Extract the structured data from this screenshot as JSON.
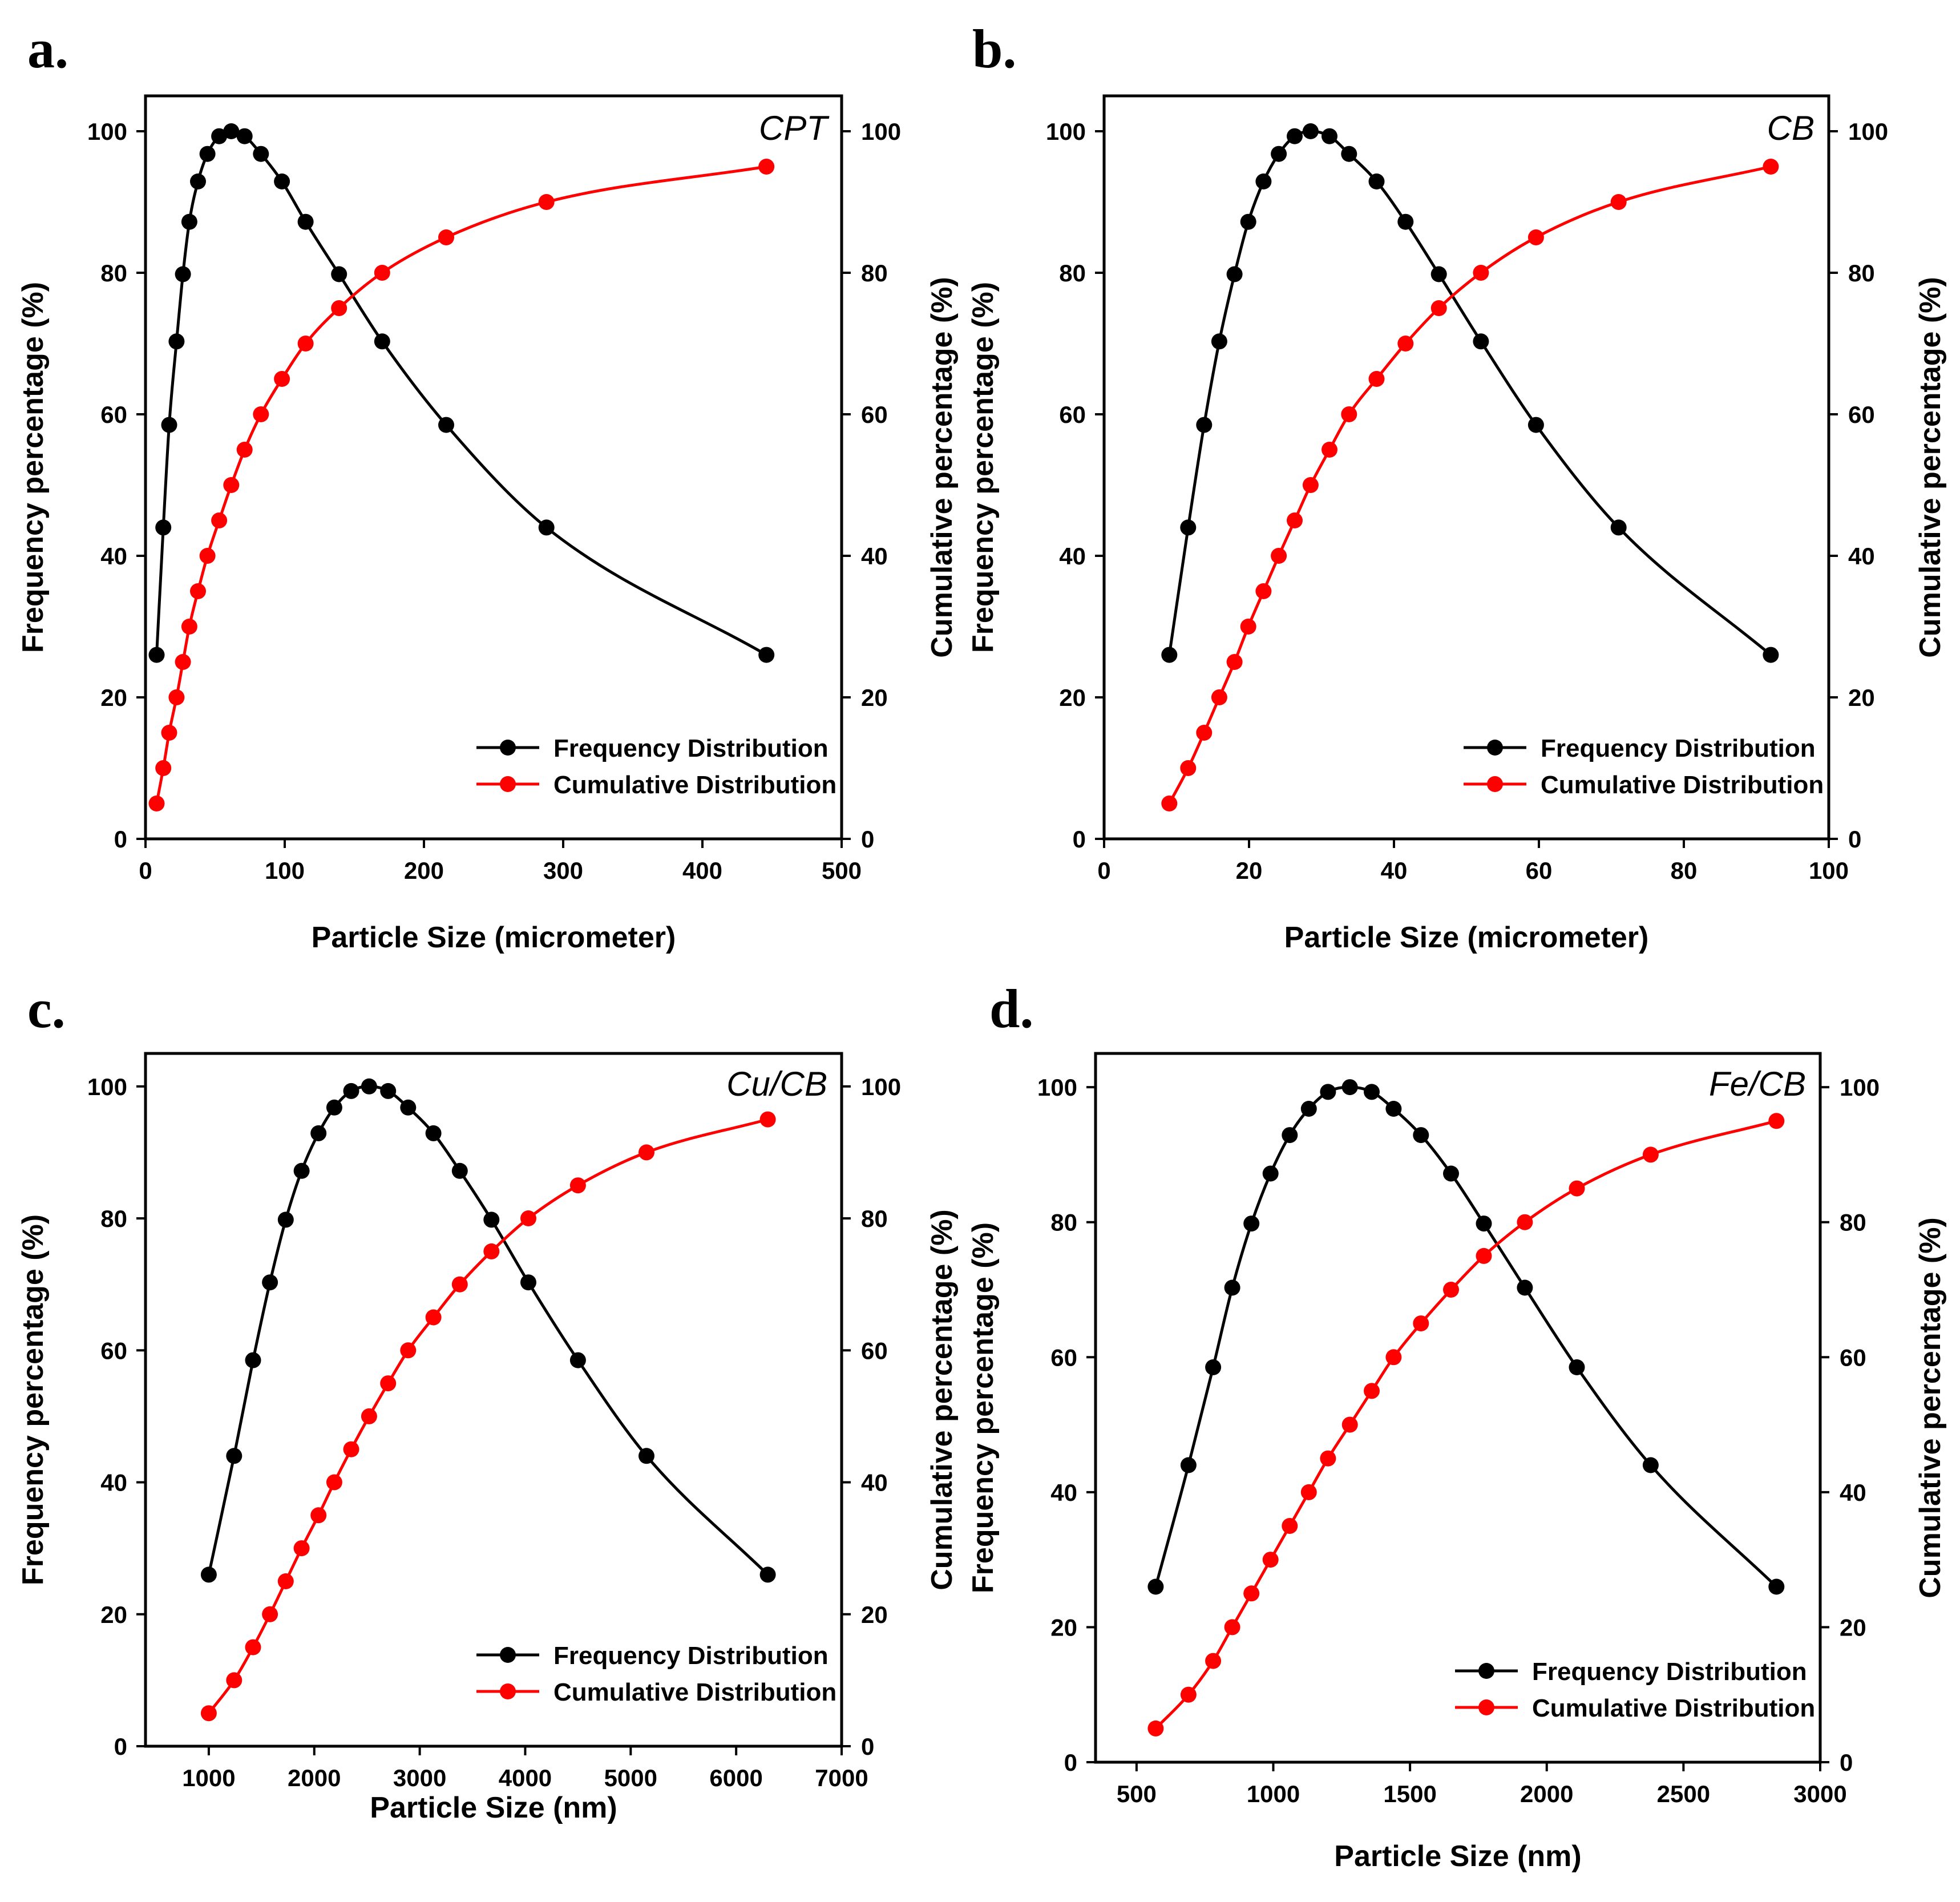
{
  "colors": {
    "frequency": "#000000",
    "cumulative": "#ff0000",
    "axis": "#000000",
    "background": "#ffffff"
  },
  "chart_data": [
    {
      "panel": "a.",
      "sample": "CPT",
      "type": "line",
      "xlabel": "Particle Size (micrometer)",
      "ylabel_left": "Frequency percentage (%)",
      "ylabel_right": "Cumulative percentage (%)",
      "xlim": [
        0,
        500
      ],
      "xticks": [
        0,
        100,
        200,
        300,
        400,
        500
      ],
      "ylim": [
        0,
        105
      ],
      "yticks": [
        0,
        20,
        40,
        60,
        80,
        100
      ],
      "legend": [
        "Frequency Distribution",
        "Cumulative Distribution"
      ],
      "legend_position": "bottom-right",
      "series": [
        {
          "name": "Frequency Distribution",
          "x": [
            8,
            12.8,
            17,
            22.3,
            26.9,
            31.5,
            37.7,
            44.5,
            52.9,
            61.6,
            71.2,
            82.9,
            98,
            115,
            139,
            170,
            216,
            288,
            446
          ],
          "y": [
            26,
            44,
            58.5,
            70.3,
            79.8,
            87.2,
            92.9,
            96.8,
            99.3,
            100,
            99.3,
            96.8,
            92.9,
            87.2,
            79.8,
            70.3,
            58.5,
            44,
            26
          ]
        },
        {
          "name": "Cumulative Distribution",
          "x": [
            8,
            12.8,
            17,
            22.3,
            26.9,
            31.5,
            37.7,
            44.5,
            52.9,
            61.6,
            71.2,
            82.9,
            98,
            115,
            139,
            170,
            216,
            288,
            446
          ],
          "y": [
            5,
            10,
            15,
            20,
            25,
            30,
            35,
            40,
            45,
            50,
            55,
            60,
            65,
            70,
            75,
            80,
            85,
            90,
            95
          ]
        }
      ]
    },
    {
      "panel": "b.",
      "sample": "CB",
      "type": "line",
      "xlabel": "Particle Size (micrometer)",
      "ylabel_left": "Frequency percentage (%)",
      "ylabel_right": "Cumulative percentage (%)",
      "xlim": [
        0,
        100
      ],
      "xticks": [
        0,
        20,
        40,
        60,
        80,
        100
      ],
      "ylim": [
        0,
        105
      ],
      "yticks": [
        0,
        20,
        40,
        60,
        80,
        100
      ],
      "legend": [
        "Frequency Distribution",
        "Cumulative Distribution"
      ],
      "legend_position": "bottom-right",
      "series": [
        {
          "name": "Frequency Distribution",
          "x": [
            9,
            11.6,
            13.8,
            15.9,
            18,
            19.9,
            22,
            24.1,
            26.3,
            28.5,
            31.1,
            33.8,
            37.6,
            41.6,
            46.2,
            52,
            59.6,
            71,
            92
          ],
          "y": [
            26,
            44,
            58.5,
            70.3,
            79.8,
            87.2,
            92.9,
            96.8,
            99.3,
            100,
            99.3,
            96.8,
            92.9,
            87.2,
            79.8,
            70.3,
            58.5,
            44,
            26
          ]
        },
        {
          "name": "Cumulative Distribution",
          "x": [
            9,
            11.6,
            13.8,
            15.9,
            18,
            19.9,
            22,
            24.1,
            26.3,
            28.5,
            31.1,
            33.8,
            37.6,
            41.6,
            46.2,
            52,
            59.6,
            71,
            92
          ],
          "y": [
            5,
            10,
            15,
            20,
            25,
            30,
            35,
            40,
            45,
            50,
            55,
            60,
            65,
            70,
            75,
            80,
            85,
            90,
            95
          ]
        }
      ]
    },
    {
      "panel": "c.",
      "sample": "Cu/CB",
      "type": "line",
      "xlabel": "Particle Size (nm)",
      "ylabel_left": "Frequency percentage (%)",
      "ylabel_right": "Cumulative percentage (%)",
      "xlim": [
        400,
        7000
      ],
      "xticks": [
        1000,
        2000,
        3000,
        4000,
        5000,
        6000,
        7000
      ],
      "ylim": [
        0,
        105
      ],
      "yticks": [
        0,
        20,
        40,
        60,
        80,
        100
      ],
      "legend": [
        "Frequency Distribution",
        "Cumulative Distribution"
      ],
      "legend_position": "bottom-right",
      "series": [
        {
          "name": "Frequency Distribution",
          "x": [
            1000,
            1240,
            1420,
            1580,
            1730,
            1880,
            2040,
            2190,
            2350,
            2520,
            2700,
            2890,
            3130,
            3380,
            3680,
            4030,
            4500,
            5150,
            6300
          ],
          "y": [
            26,
            44,
            58.5,
            70.3,
            79.8,
            87.2,
            92.9,
            96.8,
            99.3,
            100,
            99.3,
            96.8,
            92.9,
            87.2,
            79.8,
            70.3,
            58.5,
            44,
            26
          ]
        },
        {
          "name": "Cumulative Distribution",
          "x": [
            1000,
            1240,
            1420,
            1580,
            1730,
            1880,
            2040,
            2190,
            2350,
            2520,
            2700,
            2890,
            3130,
            3380,
            3680,
            4030,
            4500,
            5150,
            6300
          ],
          "y": [
            5,
            10,
            15,
            20,
            25,
            30,
            35,
            40,
            45,
            50,
            55,
            60,
            65,
            70,
            75,
            80,
            85,
            90,
            95
          ]
        }
      ]
    },
    {
      "panel": "d.",
      "sample": "Fe/CB",
      "type": "line",
      "xlabel": "Particle Size (nm)",
      "ylabel_left": "Frequency percentage (%)",
      "ylabel_right": "Cumulative percentage (%)",
      "xlim": [
        350,
        3000
      ],
      "xticks": [
        500,
        1000,
        1500,
        2000,
        2500,
        3000
      ],
      "ylim": [
        0,
        105
      ],
      "yticks": [
        0,
        20,
        40,
        60,
        80,
        100
      ],
      "legend": [
        "Frequency Distribution",
        "Cumulative Distribution"
      ],
      "legend_position": "bottom-right",
      "series": [
        {
          "name": "Frequency Distribution",
          "x": [
            570,
            690,
            780,
            850,
            920,
            990,
            1060,
            1130,
            1200,
            1280,
            1360,
            1440,
            1540,
            1650,
            1770,
            1920,
            2110,
            2380,
            2840
          ],
          "y": [
            26,
            44,
            58.5,
            70.3,
            79.8,
            87.2,
            92.9,
            96.8,
            99.3,
            100,
            99.3,
            96.8,
            92.9,
            87.2,
            79.8,
            70.3,
            58.5,
            44,
            26
          ]
        },
        {
          "name": "Cumulative Distribution",
          "x": [
            570,
            690,
            780,
            850,
            920,
            990,
            1060,
            1130,
            1200,
            1280,
            1360,
            1440,
            1540,
            1650,
            1770,
            1920,
            2110,
            2380,
            2840
          ],
          "y": [
            5,
            10,
            15,
            20,
            25,
            30,
            35,
            40,
            45,
            50,
            55,
            60,
            65,
            70,
            75,
            80,
            85,
            90,
            95
          ]
        }
      ]
    }
  ]
}
